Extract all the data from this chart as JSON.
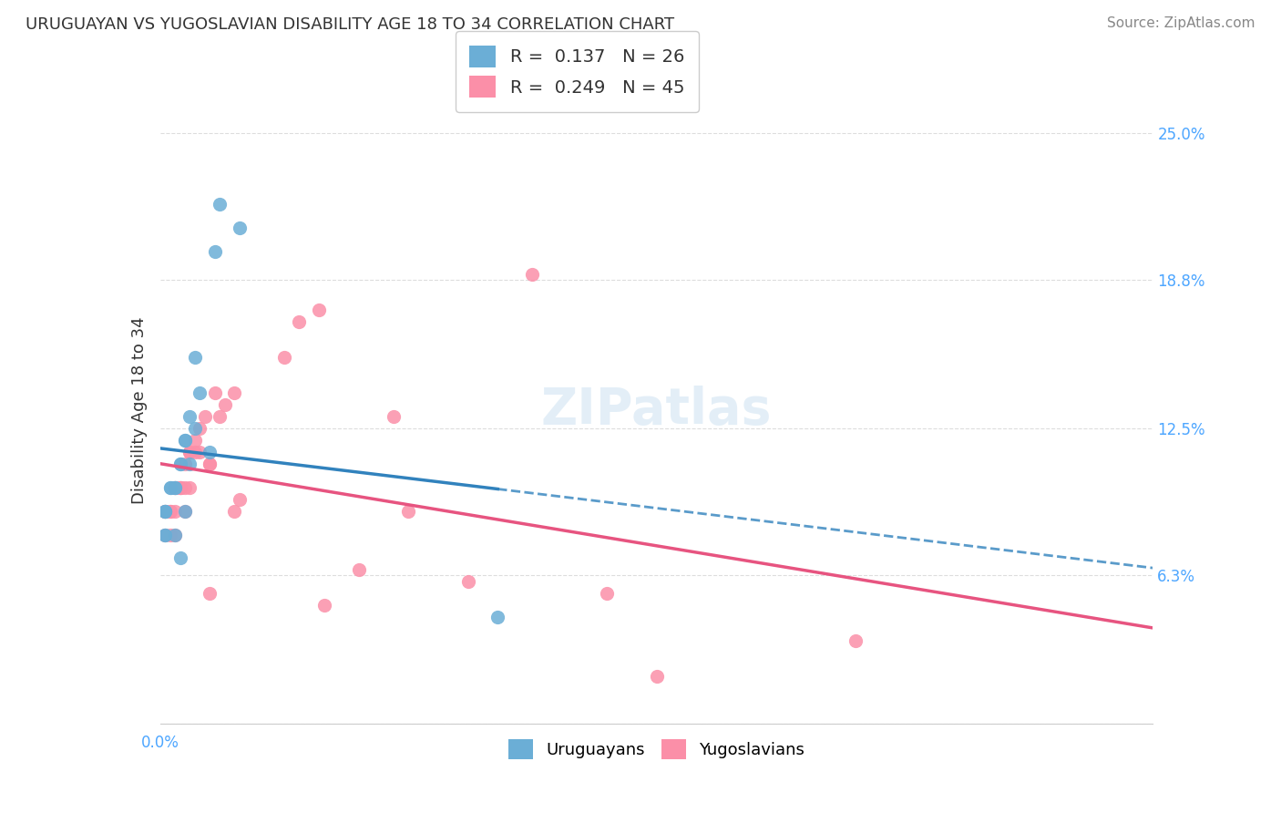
{
  "title": "URUGUAYAN VS YUGOSLAVIAN DISABILITY AGE 18 TO 34 CORRELATION CHART",
  "source": "Source: ZipAtlas.com",
  "ylabel": "Disability Age 18 to 34",
  "y_ticks": [
    0.0,
    0.063,
    0.125,
    0.188,
    0.25
  ],
  "y_tick_labels": [
    "",
    "6.3%",
    "12.5%",
    "18.8%",
    "25.0%"
  ],
  "x_range": [
    0.0,
    0.2
  ],
  "y_range": [
    0.0,
    0.265
  ],
  "uruguayan_x": [
    0.001,
    0.001,
    0.001,
    0.001,
    0.001,
    0.002,
    0.002,
    0.003,
    0.003,
    0.003,
    0.004,
    0.004,
    0.004,
    0.005,
    0.005,
    0.005,
    0.006,
    0.006,
    0.007,
    0.007,
    0.008,
    0.01,
    0.011,
    0.012,
    0.016,
    0.068
  ],
  "uruguayan_y": [
    0.09,
    0.09,
    0.09,
    0.08,
    0.08,
    0.1,
    0.1,
    0.1,
    0.1,
    0.08,
    0.11,
    0.11,
    0.07,
    0.12,
    0.12,
    0.09,
    0.13,
    0.11,
    0.155,
    0.125,
    0.14,
    0.115,
    0.2,
    0.22,
    0.21,
    0.045
  ],
  "yugoslavian_x": [
    0.001,
    0.001,
    0.001,
    0.002,
    0.002,
    0.002,
    0.003,
    0.003,
    0.003,
    0.003,
    0.004,
    0.004,
    0.004,
    0.005,
    0.005,
    0.005,
    0.006,
    0.006,
    0.006,
    0.007,
    0.007,
    0.008,
    0.008,
    0.009,
    0.01,
    0.01,
    0.01,
    0.011,
    0.012,
    0.013,
    0.015,
    0.015,
    0.016,
    0.025,
    0.028,
    0.032,
    0.033,
    0.04,
    0.047,
    0.05,
    0.062,
    0.075,
    0.09,
    0.1,
    0.14
  ],
  "yugoslavian_y": [
    0.09,
    0.09,
    0.08,
    0.09,
    0.09,
    0.08,
    0.1,
    0.1,
    0.09,
    0.08,
    0.1,
    0.1,
    0.1,
    0.11,
    0.1,
    0.09,
    0.115,
    0.115,
    0.1,
    0.12,
    0.115,
    0.125,
    0.115,
    0.13,
    0.11,
    0.11,
    0.055,
    0.14,
    0.13,
    0.135,
    0.14,
    0.09,
    0.095,
    0.155,
    0.17,
    0.175,
    0.05,
    0.065,
    0.13,
    0.09,
    0.06,
    0.19,
    0.055,
    0.02,
    0.035
  ],
  "uruguayan_color": "#6baed6",
  "yugoslavian_color": "#fb8fa8",
  "uruguayan_line_color": "#3182bd",
  "yugoslavian_line_color": "#e75480",
  "r_uruguayan": 0.137,
  "n_uruguayan": 26,
  "r_yugoslavian": 0.249,
  "n_yugoslavian": 45,
  "background_color": "#ffffff",
  "grid_color": "#dddddd"
}
